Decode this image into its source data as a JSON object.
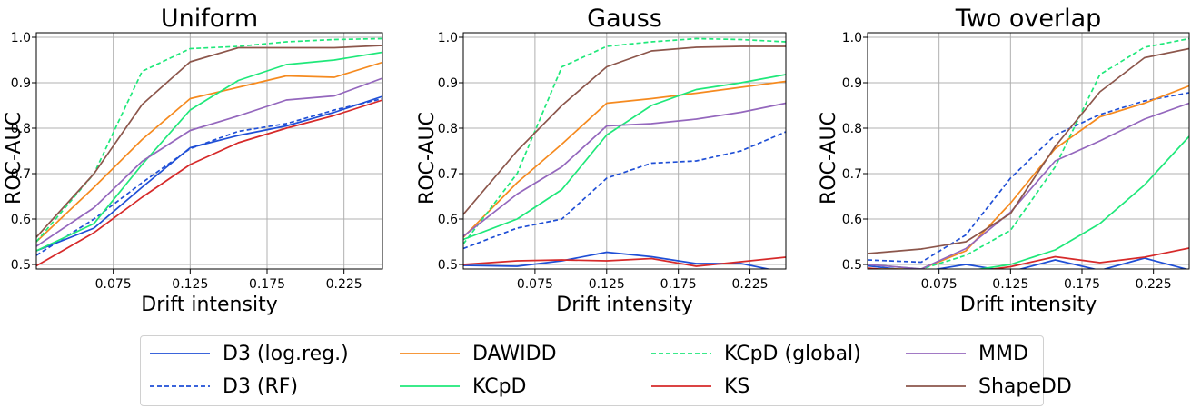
{
  "chart_data": [
    {
      "type": "line",
      "title": "Uniform",
      "xlabel": "Drift intensity",
      "ylabel": "ROC-AUC",
      "xlim": [
        0.025,
        0.25
      ],
      "ylim": [
        0.49,
        1.01
      ],
      "xticks": [
        "0.075",
        "0.125",
        "0.175",
        "0.225"
      ],
      "xtick_values": [
        0.075,
        0.125,
        0.175,
        0.225
      ],
      "yticks": [
        "0.5",
        "0.6",
        "0.7",
        "0.8",
        "0.9",
        "1.0"
      ],
      "ytick_values": [
        0.5,
        0.6,
        0.7,
        0.8,
        0.9,
        1.0
      ],
      "grid": true,
      "x": [
        0.025,
        0.0625,
        0.09375,
        0.125,
        0.15625,
        0.1875,
        0.21875,
        0.25
      ],
      "series": [
        {
          "name": "D3 (log.reg.)",
          "values": [
            0.53,
            0.58,
            0.67,
            0.757,
            0.784,
            0.805,
            0.835,
            0.87
          ]
        },
        {
          "name": "D3 (RF)",
          "values": [
            0.52,
            0.6,
            0.68,
            0.755,
            0.793,
            0.81,
            0.84,
            0.865
          ]
        },
        {
          "name": "DAWIDD",
          "values": [
            0.55,
            0.67,
            0.775,
            0.865,
            0.89,
            0.915,
            0.912,
            0.945
          ]
        },
        {
          "name": "KCpD",
          "values": [
            0.53,
            0.59,
            0.72,
            0.84,
            0.905,
            0.94,
            0.95,
            0.967
          ]
        },
        {
          "name": "KCpD (global)",
          "values": [
            0.55,
            0.7,
            0.925,
            0.975,
            0.98,
            0.99,
            0.995,
            0.997
          ]
        },
        {
          "name": "KS",
          "values": [
            0.497,
            0.57,
            0.648,
            0.72,
            0.768,
            0.8,
            0.828,
            0.862
          ]
        },
        {
          "name": "MMD",
          "values": [
            0.54,
            0.625,
            0.727,
            0.795,
            0.827,
            0.862,
            0.871,
            0.91
          ]
        },
        {
          "name": "ShapeDD",
          "values": [
            0.56,
            0.7,
            0.852,
            0.946,
            0.977,
            0.977,
            0.977,
            0.982
          ]
        }
      ]
    },
    {
      "type": "line",
      "title": "Gauss",
      "xlabel": "Drift intensity",
      "ylabel": "ROC-AUC",
      "xlim": [
        0.025,
        0.25
      ],
      "ylim": [
        0.49,
        1.01
      ],
      "xticks": [
        "0.075",
        "0.125",
        "0.175",
        "0.225"
      ],
      "xtick_values": [
        0.075,
        0.125,
        0.175,
        0.225
      ],
      "yticks": [
        "0.5",
        "0.6",
        "0.7",
        "0.8",
        "0.9",
        "1.0"
      ],
      "ytick_values": [
        0.5,
        0.6,
        0.7,
        0.8,
        0.9,
        1.0
      ],
      "grid": true,
      "x": [
        0.025,
        0.0625,
        0.09375,
        0.125,
        0.15625,
        0.1875,
        0.21875,
        0.25
      ],
      "series": [
        {
          "name": "D3 (log.reg.)",
          "values": [
            0.498,
            0.496,
            0.508,
            0.527,
            0.517,
            0.502,
            0.502,
            0.482
          ]
        },
        {
          "name": "D3 (RF)",
          "values": [
            0.535,
            0.58,
            0.6,
            0.69,
            0.723,
            0.728,
            0.75,
            0.792
          ]
        },
        {
          "name": "DAWIDD",
          "values": [
            0.56,
            0.68,
            0.765,
            0.855,
            0.865,
            0.877,
            0.89,
            0.903
          ]
        },
        {
          "name": "KCpD",
          "values": [
            0.555,
            0.6,
            0.665,
            0.785,
            0.85,
            0.885,
            0.9,
            0.918
          ]
        },
        {
          "name": "KCpD (global)",
          "values": [
            0.545,
            0.7,
            0.935,
            0.98,
            0.99,
            0.997,
            0.995,
            0.99
          ]
        },
        {
          "name": "KS",
          "values": [
            0.5,
            0.508,
            0.51,
            0.508,
            0.513,
            0.496,
            0.506,
            0.516
          ]
        },
        {
          "name": "MMD",
          "values": [
            0.562,
            0.655,
            0.715,
            0.805,
            0.81,
            0.82,
            0.835,
            0.855
          ]
        },
        {
          "name": "ShapeDD",
          "values": [
            0.61,
            0.75,
            0.85,
            0.935,
            0.97,
            0.978,
            0.98,
            0.98
          ]
        }
      ]
    },
    {
      "type": "line",
      "title": "Two overlap",
      "xlabel": "Drift intensity",
      "ylabel": "ROC-AUC",
      "xlim": [
        0.025,
        0.25
      ],
      "ylim": [
        0.49,
        1.01
      ],
      "xticks": [
        "0.075",
        "0.125",
        "0.175",
        "0.225"
      ],
      "xtick_values": [
        0.075,
        0.125,
        0.175,
        0.225
      ],
      "yticks": [
        "0.5",
        "0.6",
        "0.7",
        "0.8",
        "0.9",
        "1.0"
      ],
      "ytick_values": [
        0.5,
        0.6,
        0.7,
        0.8,
        0.9,
        1.0
      ],
      "grid": true,
      "x": [
        0.025,
        0.0625,
        0.09375,
        0.125,
        0.15625,
        0.1875,
        0.21875,
        0.25
      ],
      "series": [
        {
          "name": "D3 (log.reg.)",
          "values": [
            0.497,
            0.484,
            0.5,
            0.484,
            0.51,
            0.487,
            0.514,
            0.488
          ]
        },
        {
          "name": "D3 (RF)",
          "values": [
            0.51,
            0.505,
            0.565,
            0.69,
            0.785,
            0.83,
            0.86,
            0.878
          ]
        },
        {
          "name": "DAWIDD",
          "values": [
            0.49,
            0.49,
            0.53,
            0.635,
            0.755,
            0.825,
            0.855,
            0.893
          ]
        },
        {
          "name": "KCpD",
          "values": [
            0.48,
            0.47,
            0.485,
            0.5,
            0.532,
            0.59,
            0.675,
            0.782
          ]
        },
        {
          "name": "KCpD (global)",
          "values": [
            0.5,
            0.49,
            0.52,
            0.575,
            0.715,
            0.918,
            0.978,
            0.997
          ]
        },
        {
          "name": "KS",
          "values": [
            0.492,
            0.482,
            0.482,
            0.495,
            0.517,
            0.504,
            0.516,
            0.536
          ]
        },
        {
          "name": "MMD",
          "values": [
            0.5,
            0.49,
            0.535,
            0.615,
            0.728,
            0.772,
            0.82,
            0.855
          ]
        },
        {
          "name": "ShapeDD",
          "values": [
            0.524,
            0.534,
            0.55,
            0.612,
            0.76,
            0.88,
            0.955,
            0.975
          ]
        }
      ]
    }
  ],
  "series_styles": [
    {
      "name": "D3 (log.reg.)",
      "color": "#1f4fd6",
      "dash": "solid"
    },
    {
      "name": "D3 (RF)",
      "color": "#1f4fd6",
      "dash": "dashed"
    },
    {
      "name": "DAWIDD",
      "color": "#f58a1f",
      "dash": "solid"
    },
    {
      "name": "KCpD",
      "color": "#1fe87a",
      "dash": "solid"
    },
    {
      "name": "KCpD (global)",
      "color": "#1fe87a",
      "dash": "dashed"
    },
    {
      "name": "KS",
      "color": "#d62a2a",
      "dash": "solid"
    },
    {
      "name": "MMD",
      "color": "#9467bd",
      "dash": "solid"
    },
    {
      "name": "ShapeDD",
      "color": "#8c564b",
      "dash": "solid"
    }
  ],
  "legend": {
    "placement": "bottom-center",
    "entries": [
      "D3 (log.reg.)",
      "D3 (RF)",
      "DAWIDD",
      "KCpD",
      "KCpD (global)",
      "KS",
      "MMD",
      "ShapeDD"
    ]
  }
}
